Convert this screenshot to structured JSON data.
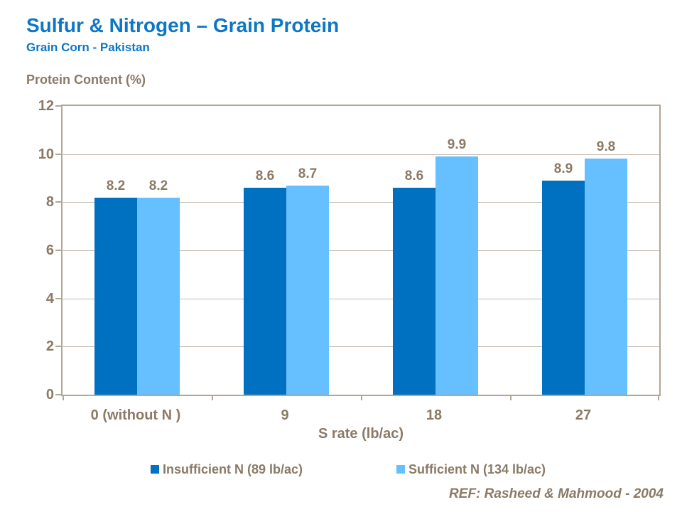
{
  "header": {
    "title": "Sulfur & Nitrogen – Grain Protein",
    "subtitle": "Grain Corn - Pakistan"
  },
  "colors": {
    "title_blue": "#0d77c5",
    "text_brown": "#8a7a66",
    "axis_line": "#b2a695",
    "gridline": "#c3bab0",
    "series1": "#0070c0",
    "series2": "#66bfff"
  },
  "chart_data": {
    "type": "bar",
    "title": "",
    "ylabel": "Protein Content (%)",
    "xlabel": "S rate (lb/ac)",
    "categories": [
      "0 (without N )",
      "9",
      "18",
      "27"
    ],
    "series": [
      {
        "name": "Insufficient N (89 lb/ac)",
        "color": "#0070c0",
        "values": [
          8.2,
          8.6,
          8.6,
          8.9
        ]
      },
      {
        "name": "Sufficient N (134 lb/ac)",
        "color": "#66bfff",
        "values": [
          8.2,
          8.7,
          9.9,
          9.8
        ]
      }
    ],
    "ylim": [
      0,
      12
    ],
    "ytick_step": 2,
    "grid": true,
    "legend_position": "bottom"
  },
  "footer": {
    "reference": "REF: Rasheed & Mahmood - 2004"
  }
}
